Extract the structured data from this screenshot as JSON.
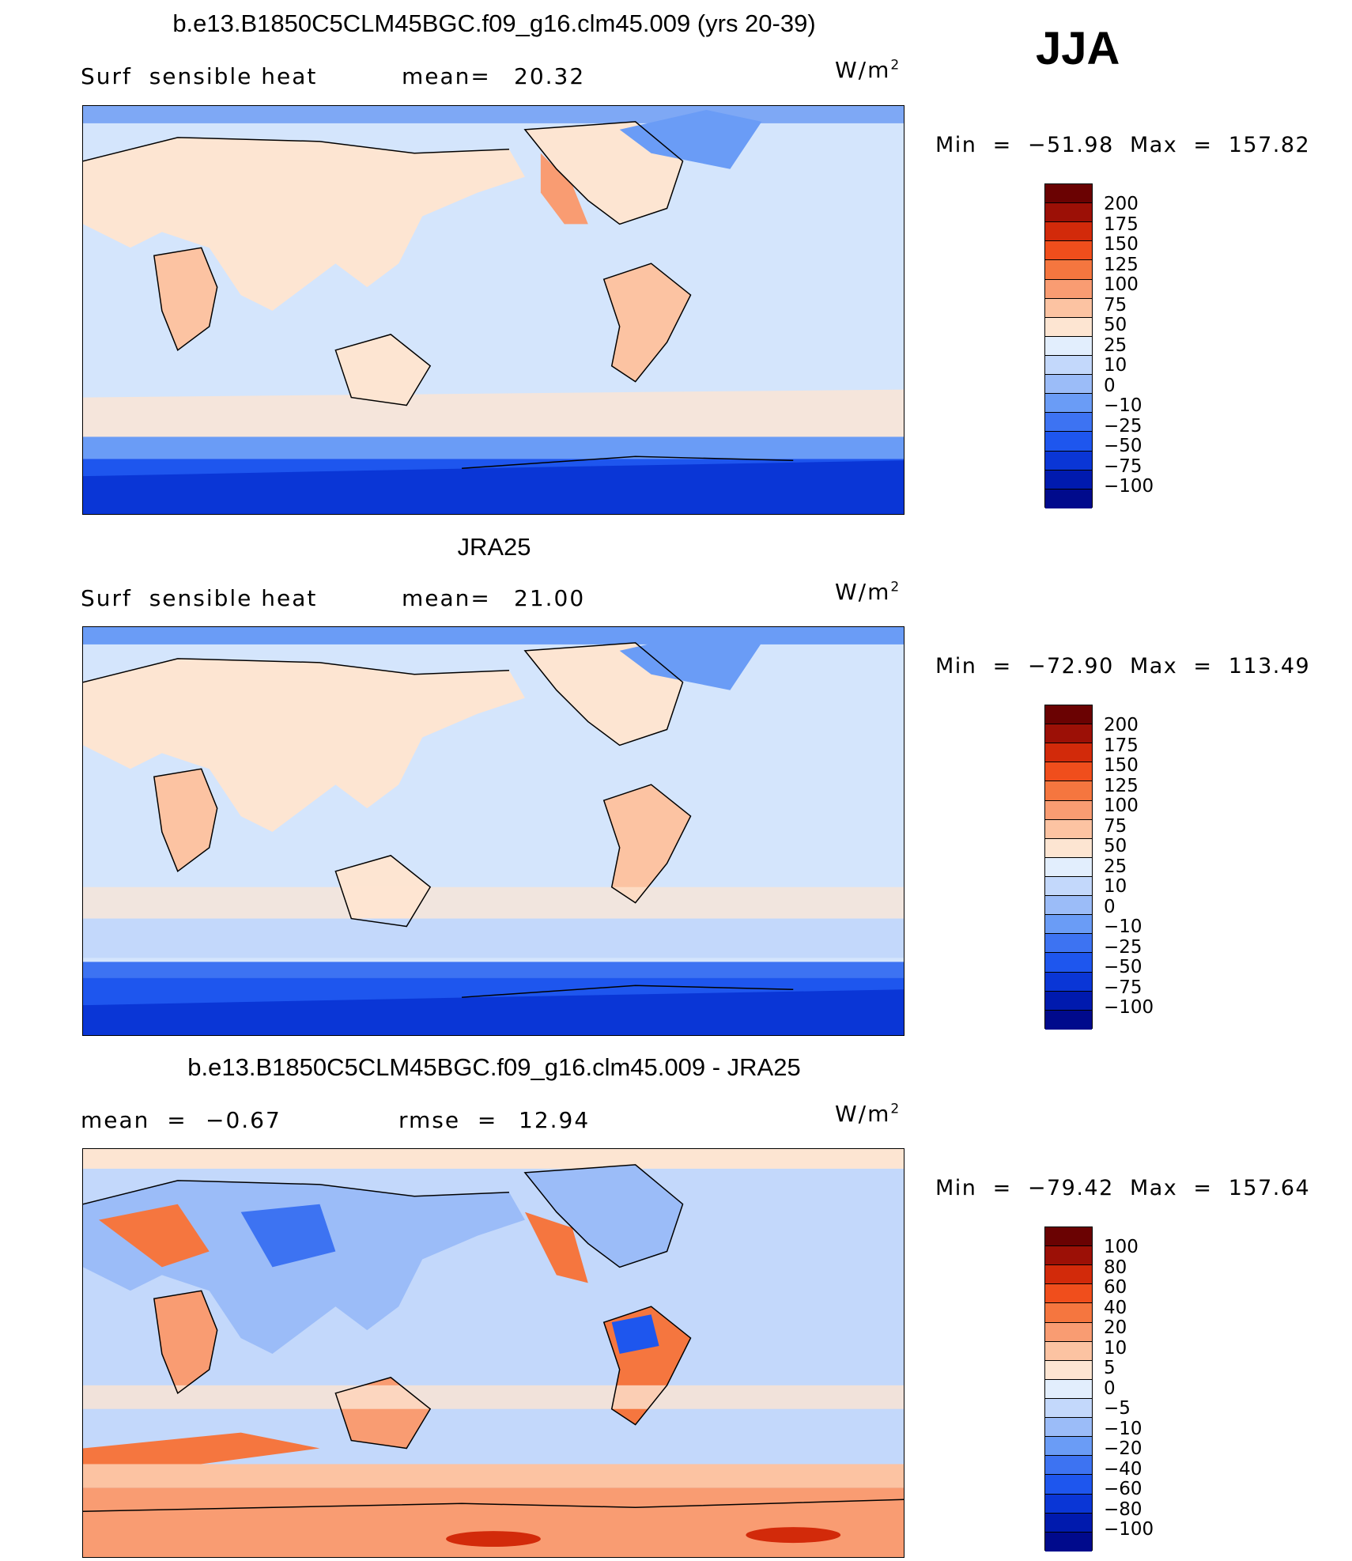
{
  "season": "JJA",
  "palettes": {
    "abs": [
      "#000a8c",
      "#001aae",
      "#0a36d6",
      "#1e56ee",
      "#3d73f2",
      "#6a9cf6",
      "#9bbcf8",
      "#c3d8fb",
      "#e2eefd",
      "#fde5d2",
      "#fcc3a2",
      "#f99c72",
      "#f5763f",
      "#f04e1c",
      "#d22a0a",
      "#9c1006",
      "#6a0202"
    ],
    "diff": [
      "#000a8c",
      "#001aae",
      "#0a36d6",
      "#1e56ee",
      "#3d73f2",
      "#6a9cf6",
      "#9bbcf8",
      "#c3d8fb",
      "#e2eefd",
      "#fde5d2",
      "#fcc3a2",
      "#f99c72",
      "#f5763f",
      "#f04e1c",
      "#d22a0a",
      "#9c1006",
      "#6a0202"
    ]
  },
  "panels": [
    {
      "title": "b.e13.B1850C5CLM45BGC.f09_g16.clm45.009 (yrs 20-39)",
      "variable": "Surf  sensible heat",
      "stat_label": "mean=",
      "stat_value": "20.32",
      "units": "W/m",
      "units_sup": "2",
      "min_max": "Min  =  −51.98  Max  =  157.82",
      "levels": [
        "200",
        "175",
        "150",
        "125",
        "100",
        "75",
        "50",
        "25",
        "10",
        "0",
        "−10",
        "−25",
        "−50",
        "−75",
        "−100"
      ]
    },
    {
      "title": "JRA25",
      "variable": "Surf  sensible heat",
      "stat_label": "mean=",
      "stat_value": "21.00",
      "units": "W/m",
      "units_sup": "2",
      "min_max": "Min  =  −72.90  Max  =  113.49",
      "levels": [
        "200",
        "175",
        "150",
        "125",
        "100",
        "75",
        "50",
        "25",
        "10",
        "0",
        "−10",
        "−25",
        "−50",
        "−75",
        "−100"
      ]
    },
    {
      "title": "b.e13.B1850C5CLM45BGC.f09_g16.clm45.009 - JRA25",
      "variable": "mean  =",
      "stat_label": "",
      "stat_value": "−0.67",
      "rmse_label": "rmse  =",
      "rmse_value": "12.94",
      "units": "W/m",
      "units_sup": "2",
      "min_max": "Min  =  −79.42  Max  =  157.64",
      "levels": [
        "100",
        "80",
        "60",
        "40",
        "20",
        "10",
        "5",
        "0",
        "−5",
        "−10",
        "−20",
        "−40",
        "−60",
        "−80",
        "−100"
      ]
    }
  ]
}
